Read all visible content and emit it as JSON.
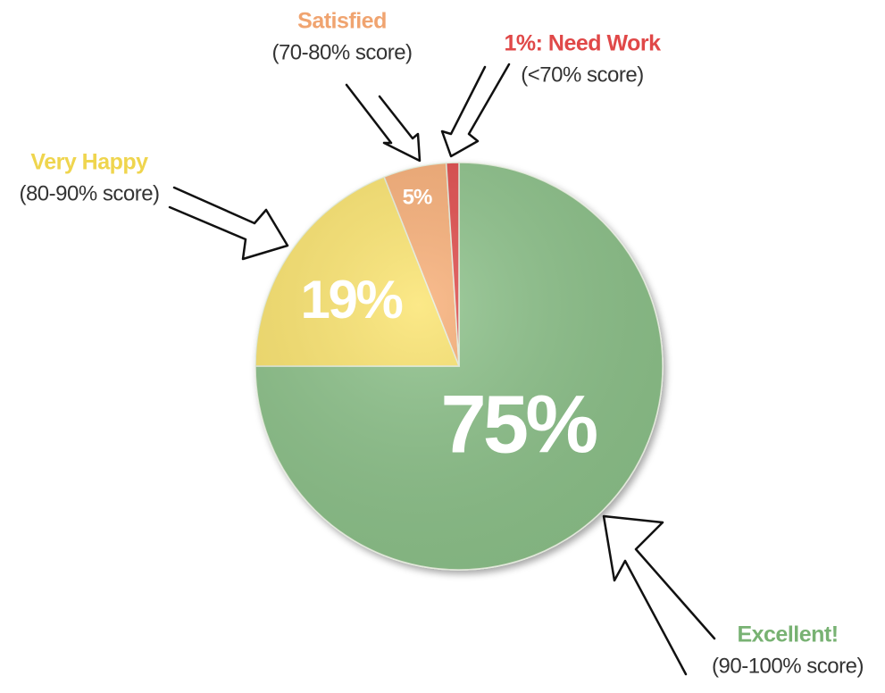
{
  "chart_data": {
    "type": "pie",
    "categories": [
      "Excellent!",
      "Very Happy",
      "Satisfied",
      "1%: Need Work"
    ],
    "category_notes": [
      "(90-100% score)",
      "(80-90% score)",
      "(70-80% score)",
      "(<70% score)"
    ],
    "values": [
      75,
      19,
      5,
      1
    ],
    "value_labels": [
      "75%",
      "19%",
      "5%",
      null
    ],
    "colors": [
      "#8dc28a",
      "#fbe46e",
      "#f8ae76",
      "#e04a4a"
    ],
    "label_colors": [
      "#78b273",
      "#efd54e",
      "#f0a470",
      "#e04848"
    ]
  }
}
